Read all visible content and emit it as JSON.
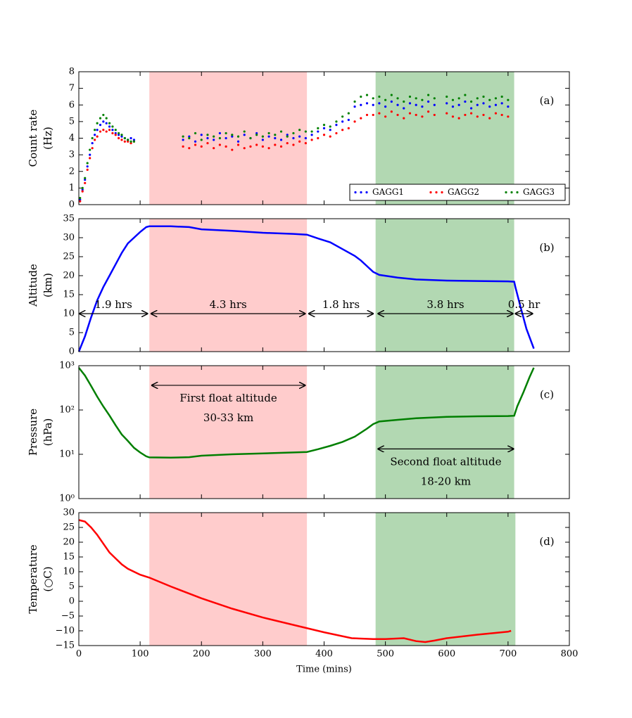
{
  "chart_data": [
    {
      "type": "scatter",
      "panel_label": "(a)",
      "ylabel": [
        "Count rate",
        "(Hz)"
      ],
      "xlim": [
        0,
        800
      ],
      "xticks": [
        0,
        100,
        200,
        300,
        400,
        500,
        600,
        700,
        800
      ],
      "ylim": [
        0,
        8
      ],
      "yticks": [
        0,
        1,
        2,
        3,
        4,
        5,
        6,
        7,
        8
      ],
      "spans": [
        {
          "xlim": [
            115,
            372
          ],
          "color": "#ffcccc"
        },
        {
          "xlim": [
            484,
            710
          ],
          "color": "#b2d8b2"
        }
      ],
      "legend": "lower right",
      "x": [
        2,
        6,
        10,
        14,
        18,
        22,
        26,
        30,
        35,
        40,
        45,
        50,
        55,
        60,
        65,
        70,
        75,
        80,
        85,
        90,
        170,
        180,
        190,
        200,
        210,
        220,
        230,
        240,
        250,
        260,
        270,
        280,
        290,
        300,
        310,
        320,
        330,
        340,
        350,
        360,
        370,
        380,
        390,
        400,
        410,
        420,
        430,
        440,
        450,
        460,
        470,
        480,
        490,
        500,
        510,
        520,
        530,
        540,
        550,
        560,
        570,
        580,
        600,
        610,
        620,
        630,
        640,
        650,
        660,
        670,
        680,
        690,
        700
      ],
      "series": [
        {
          "name": "GAGG1",
          "color": "#0000ff",
          "values": [
            0.3,
            0.9,
            1.5,
            2.3,
            3.0,
            3.7,
            4.2,
            4.5,
            4.8,
            5.0,
            4.9,
            4.7,
            4.5,
            4.3,
            4.2,
            4.1,
            4.0,
            3.9,
            4.0,
            3.9,
            3.9,
            4.1,
            3.8,
            4.2,
            4.0,
            3.9,
            4.3,
            4.0,
            4.1,
            3.8,
            4.2,
            4.0,
            4.3,
            3.9,
            4.1,
            4.0,
            3.9,
            4.2,
            4.0,
            4.1,
            4.0,
            4.2,
            4.4,
            4.6,
            4.5,
            4.8,
            5.0,
            5.1,
            5.9,
            6.0,
            6.1,
            6.0,
            6.1,
            5.9,
            6.2,
            6.0,
            5.8,
            6.1,
            6.0,
            5.9,
            6.2,
            6.0,
            6.1,
            5.9,
            6.0,
            6.2,
            5.8,
            6.0,
            6.1,
            5.9,
            6.0,
            6.1,
            5.9
          ]
        },
        {
          "name": "GAGG2",
          "color": "#ff0000",
          "values": [
            0.2,
            0.8,
            1.3,
            2.1,
            2.8,
            3.4,
            3.9,
            4.1,
            4.4,
            4.5,
            4.4,
            4.5,
            4.3,
            4.2,
            4.0,
            3.9,
            3.8,
            3.8,
            3.7,
            3.8,
            3.5,
            3.4,
            3.6,
            3.5,
            3.7,
            3.4,
            3.6,
            3.5,
            3.3,
            3.6,
            3.4,
            3.5,
            3.6,
            3.5,
            3.4,
            3.6,
            3.5,
            3.7,
            3.6,
            3.8,
            3.7,
            3.9,
            4.0,
            4.2,
            4.1,
            4.3,
            4.5,
            4.6,
            5.0,
            5.2,
            5.4,
            5.4,
            5.5,
            5.3,
            5.6,
            5.4,
            5.2,
            5.5,
            5.4,
            5.3,
            5.6,
            5.4,
            5.5,
            5.3,
            5.2,
            5.4,
            5.5,
            5.3,
            5.4,
            5.2,
            5.5,
            5.4,
            5.3
          ]
        },
        {
          "name": "GAGG3",
          "color": "#008000",
          "values": [
            0.4,
            1.0,
            1.6,
            2.5,
            3.3,
            4.0,
            4.5,
            4.9,
            5.2,
            5.4,
            5.2,
            4.9,
            4.7,
            4.5,
            4.3,
            4.2,
            4.0,
            3.9,
            3.8,
            3.8,
            4.1,
            4.0,
            4.3,
            3.9,
            4.2,
            4.1,
            4.0,
            4.3,
            4.2,
            4.1,
            4.4,
            4.0,
            4.2,
            4.1,
            4.3,
            4.2,
            4.4,
            4.1,
            4.3,
            4.5,
            4.4,
            4.4,
            4.6,
            4.8,
            4.7,
            5.0,
            5.3,
            5.5,
            6.2,
            6.5,
            6.6,
            6.4,
            6.5,
            6.3,
            6.6,
            6.4,
            6.2,
            6.5,
            6.4,
            6.3,
            6.6,
            6.4,
            6.5,
            6.3,
            6.4,
            6.6,
            6.2,
            6.4,
            6.5,
            6.3,
            6.4,
            6.5,
            6.3
          ]
        }
      ]
    },
    {
      "type": "line",
      "panel_label": "(b)",
      "ylabel": [
        "Altitude",
        "(km)"
      ],
      "xlim": [
        0,
        800
      ],
      "xticks": [
        0,
        100,
        200,
        300,
        400,
        500,
        600,
        700,
        800
      ],
      "ylim": [
        0,
        35
      ],
      "yticks": [
        0,
        5,
        10,
        15,
        20,
        25,
        30,
        35
      ],
      "spans": [
        {
          "xlim": [
            115,
            372
          ],
          "color": "#ffcccc"
        },
        {
          "xlim": [
            484,
            710
          ],
          "color": "#b2d8b2"
        }
      ],
      "color": "#0000ff",
      "x": [
        0,
        10,
        20,
        30,
        40,
        50,
        60,
        70,
        80,
        90,
        100,
        110,
        115,
        150,
        180,
        200,
        250,
        300,
        350,
        372,
        390,
        410,
        430,
        450,
        460,
        470,
        480,
        490,
        520,
        550,
        600,
        650,
        700,
        710,
        712,
        720,
        730,
        742
      ],
      "values": [
        0,
        4,
        9,
        13.5,
        17,
        20,
        23,
        26,
        28.5,
        30,
        31.5,
        32.8,
        33,
        33,
        32.8,
        32.2,
        31.8,
        31.3,
        31,
        30.8,
        29.8,
        28.8,
        27,
        25.2,
        24,
        22.5,
        21,
        20.2,
        19.5,
        19,
        18.7,
        18.6,
        18.5,
        18.4,
        17,
        12,
        6,
        0.8
      ],
      "arrows": [
        {
          "x": [
            0,
            113
          ],
          "y": 10,
          "label": "1.9 hrs"
        },
        {
          "x": [
            117,
            370
          ],
          "y": 10,
          "label": "4.3 hrs"
        },
        {
          "x": [
            374,
            481
          ],
          "y": 10,
          "label": "1.8 hrs"
        },
        {
          "x": [
            487,
            709
          ],
          "y": 10,
          "label": "3.8 hrs"
        },
        {
          "x": [
            711,
            741
          ],
          "y": 10,
          "label": "0.5 hr"
        }
      ]
    },
    {
      "type": "line",
      "panel_label": "(c)",
      "ylabel": [
        "Pressure",
        "(hPa)"
      ],
      "yscale": "log",
      "xlim": [
        0,
        800
      ],
      "xticks": [
        0,
        100,
        200,
        300,
        400,
        500,
        600,
        700,
        800
      ],
      "ylim": [
        1,
        1000
      ],
      "yticks": [
        {
          "value": 1,
          "label": "10⁰"
        },
        {
          "value": 10,
          "label": "10¹"
        },
        {
          "value": 100,
          "label": "10²"
        },
        {
          "value": 1000,
          "label": "10³"
        }
      ],
      "spans": [
        {
          "xlim": [
            115,
            372
          ],
          "color": "#ffcccc"
        },
        {
          "xlim": [
            484,
            710
          ],
          "color": "#b2d8b2"
        }
      ],
      "color": "#007f00",
      "x": [
        0,
        10,
        20,
        30,
        40,
        50,
        60,
        70,
        80,
        90,
        100,
        110,
        115,
        150,
        180,
        200,
        250,
        300,
        350,
        372,
        390,
        410,
        430,
        450,
        470,
        480,
        490,
        520,
        550,
        600,
        650,
        700,
        710,
        715,
        725,
        735,
        742
      ],
      "values": [
        900,
        600,
        350,
        200,
        120,
        75,
        45,
        28,
        20,
        14,
        11,
        9,
        8.5,
        8.4,
        8.6,
        9.3,
        10,
        10.5,
        11,
        11.3,
        13,
        15.5,
        19,
        25,
        38,
        48,
        55,
        60,
        65,
        70,
        72,
        73,
        74,
        120,
        250,
        550,
        900
      ],
      "arrows": [
        {
          "x": [
            118,
            370
          ],
          "y": 360,
          "label": [
            "First float altitude",
            "30-33 km"
          ]
        },
        {
          "x": [
            487,
            710
          ],
          "y": 13.2,
          "label": [
            "Second float altitude",
            "18-20 km"
          ]
        }
      ]
    },
    {
      "type": "line",
      "panel_label": "(d)",
      "ylabel": [
        "Temperature",
        "(○C)"
      ],
      "xlabel": "Time (mins)",
      "xlim": [
        0,
        800
      ],
      "xticks": [
        0,
        100,
        200,
        300,
        400,
        500,
        600,
        700,
        800
      ],
      "ylim": [
        -15,
        30
      ],
      "yticks": [
        {
          "value": -15,
          "label": "−15"
        },
        {
          "value": -10,
          "label": "−10"
        },
        {
          "value": -5,
          "label": "−5"
        },
        0,
        5,
        10,
        15,
        20,
        25,
        30
      ],
      "spans": [
        {
          "xlim": [
            115,
            372
          ],
          "color": "#ffcccc"
        },
        {
          "xlim": [
            484,
            712
          ],
          "color": "#b2d8b2"
        }
      ],
      "color": "#ff0000",
      "x": [
        0,
        10,
        20,
        30,
        40,
        50,
        60,
        70,
        80,
        100,
        115,
        150,
        200,
        250,
        300,
        350,
        400,
        445,
        480,
        500,
        530,
        550,
        565,
        580,
        600,
        650,
        700,
        705
      ],
      "values": [
        27.5,
        27,
        25,
        22.5,
        19.5,
        16.5,
        14.5,
        12.5,
        11,
        9,
        8,
        5,
        1,
        -2.5,
        -5.5,
        -8,
        -10.5,
        -12.5,
        -12.8,
        -12.8,
        -12.5,
        -13.5,
        -13.8,
        -13.3,
        -12.5,
        -11.3,
        -10.3,
        -10
      ]
    }
  ]
}
